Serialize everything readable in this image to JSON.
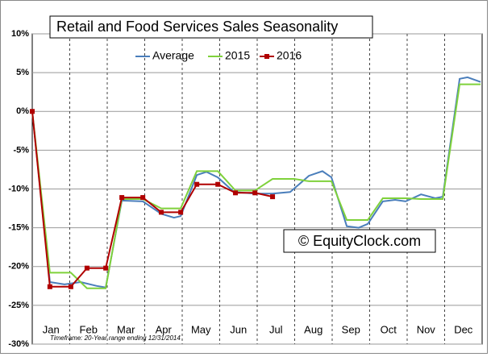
{
  "chart_data": {
    "type": "line",
    "title": "Retail and Food Services Sales Seasonality",
    "annotations": [
      "© EquityClock.com",
      "Timeframe: 20-Year range ending 12/31/2014"
    ],
    "xlim": [
      0,
      12
    ],
    "xticks": [
      {
        "value": 0.5,
        "label": "Jan"
      },
      {
        "value": 1.5,
        "label": "Feb"
      },
      {
        "value": 2.5,
        "label": "Mar"
      },
      {
        "value": 3.5,
        "label": "Apr"
      },
      {
        "value": 4.5,
        "label": "May"
      },
      {
        "value": 5.5,
        "label": "Jun"
      },
      {
        "value": 6.5,
        "label": "Jul"
      },
      {
        "value": 7.5,
        "label": "Aug"
      },
      {
        "value": 8.5,
        "label": "Sep"
      },
      {
        "value": 9.5,
        "label": "Oct"
      },
      {
        "value": 10.5,
        "label": "Nov"
      },
      {
        "value": 11.5,
        "label": "Dec"
      }
    ],
    "ylim": [
      -30,
      10
    ],
    "yticks": [
      {
        "value": 10,
        "label": "10%"
      },
      {
        "value": 5,
        "label": "5%"
      },
      {
        "value": 0,
        "label": "0%"
      },
      {
        "value": -5,
        "label": "-5%"
      },
      {
        "value": -10,
        "label": "-10%"
      },
      {
        "value": -15,
        "label": "-15%"
      },
      {
        "value": -20,
        "label": "-20%"
      },
      {
        "value": -25,
        "label": "-25%"
      },
      {
        "value": -30,
        "label": "-30%"
      }
    ],
    "grid": true,
    "series": [
      {
        "name": "Average",
        "color": "#4a7ebb",
        "x": [
          0,
          0.47,
          0.86,
          1.29,
          1.72,
          1.96,
          2.39,
          2.95,
          3.44,
          3.78,
          3.96,
          4.39,
          4.65,
          4.95,
          5.38,
          5.94,
          6.41,
          6.88,
          7.38,
          7.74,
          7.98,
          8.39,
          8.71,
          8.95,
          9.35,
          9.68,
          9.96,
          10.37,
          10.75,
          10.95,
          11.4,
          11.61,
          11.96
        ],
        "values": [
          0,
          -22,
          -22.3,
          -22,
          -22.5,
          -22.7,
          -11.5,
          -11.6,
          -13.2,
          -13.7,
          -13.5,
          -8.2,
          -7.8,
          -8.5,
          -10.4,
          -10.6,
          -10.6,
          -10.4,
          -8.3,
          -7.7,
          -8.5,
          -14.8,
          -15,
          -14.5,
          -11.6,
          -11.4,
          -11.6,
          -10.7,
          -11.2,
          -11,
          4.2,
          4.4,
          3.8
        ]
      },
      {
        "name": "2015",
        "color": "#7fd13b",
        "x": [
          0,
          0.47,
          1.03,
          1.46,
          1.96,
          2.39,
          2.95,
          3.44,
          3.96,
          4.39,
          4.95,
          5.42,
          5.94,
          6.41,
          6.99,
          7.38,
          7.98,
          8.39,
          8.95,
          9.35,
          9.96,
          10.37,
          10.95,
          11.4,
          11.96
        ],
        "values": [
          0,
          -20.8,
          -20.8,
          -22.8,
          -22.8,
          -11.3,
          -11.3,
          -12.5,
          -12.5,
          -7.7,
          -7.7,
          -10.2,
          -10.2,
          -8.7,
          -8.7,
          -9,
          -9,
          -14,
          -14,
          -11.2,
          -11.2,
          -11.3,
          -11.3,
          3.5,
          3.5
        ]
      },
      {
        "name": "2016",
        "color": "#b00000",
        "marker": "square",
        "x": [
          0,
          0.47,
          1.03,
          1.46,
          1.96,
          2.39,
          2.95,
          3.44,
          3.96,
          4.39,
          4.95,
          5.42,
          5.94,
          6.41
        ],
        "values": [
          0,
          -22.6,
          -22.6,
          -20.2,
          -20.2,
          -11.1,
          -11.1,
          -13,
          -13,
          -9.4,
          -9.4,
          -10.5,
          -10.5,
          -11
        ]
      }
    ]
  }
}
